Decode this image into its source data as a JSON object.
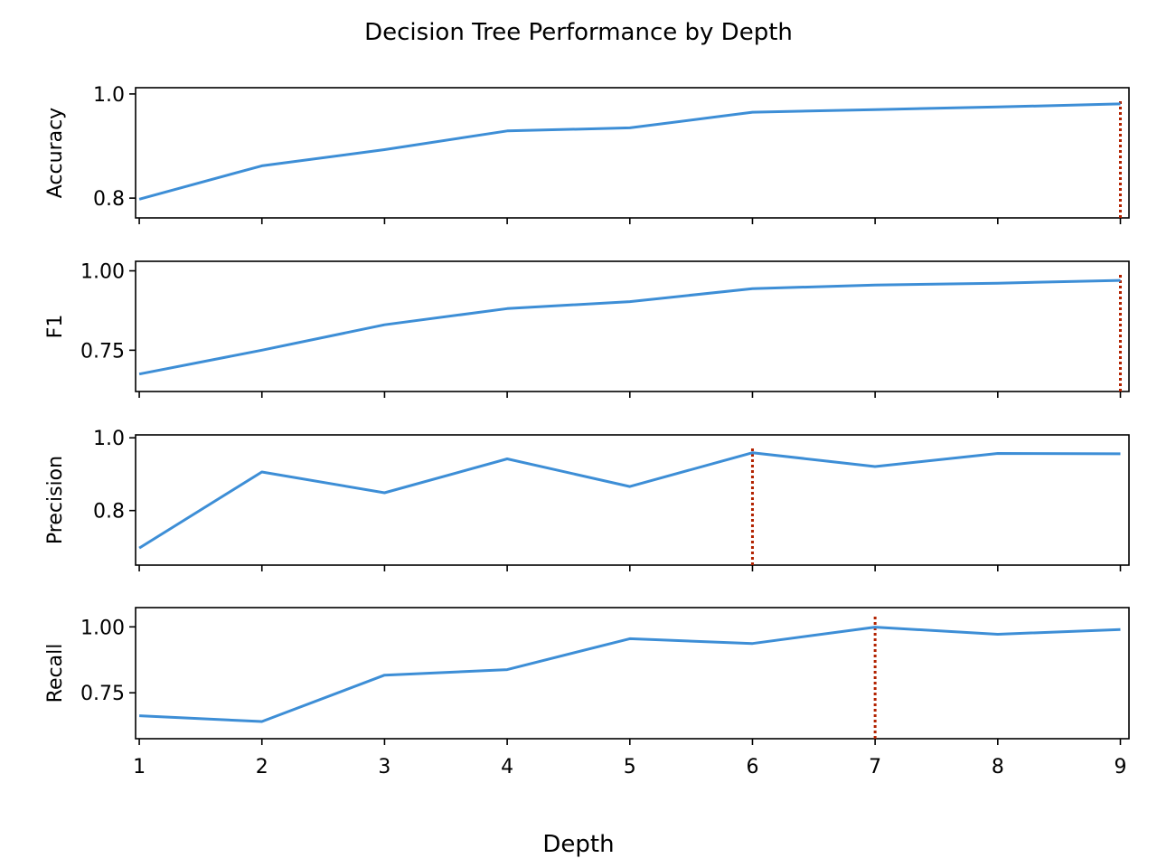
{
  "chart_data": {
    "type": "line",
    "title": "Decision Tree Performance by Depth",
    "xlabel": "Depth",
    "x": [
      1,
      2,
      3,
      4,
      5,
      6,
      7,
      8,
      9
    ],
    "xticks": [
      "1",
      "2",
      "3",
      "4",
      "5",
      "6",
      "7",
      "8",
      "9"
    ],
    "xlim": [
      0.97,
      9.07
    ],
    "line_color": "#3d8ed6",
    "marker_color": "#b22200",
    "grid": false,
    "panels": [
      {
        "ylabel": "Accuracy",
        "ylim": [
          0.762,
          1.012
        ],
        "yticks": [
          0.8,
          1.0
        ],
        "ytick_labels": [
          "0.8",
          "1.0"
        ],
        "values": [
          0.798,
          0.862,
          0.893,
          0.929,
          0.935,
          0.965,
          0.97,
          0.975,
          0.981
        ],
        "best_x": 9
      },
      {
        "ylabel": "F1",
        "ylim": [
          0.62,
          1.03
        ],
        "yticks": [
          0.75,
          1.0
        ],
        "ytick_labels": [
          "0.75",
          "1.00"
        ],
        "values": [
          0.675,
          0.75,
          0.83,
          0.881,
          0.903,
          0.944,
          0.955,
          0.961,
          0.97
        ],
        "best_x": 9
      },
      {
        "ylabel": "Precision",
        "ylim": [
          0.65,
          1.008
        ],
        "yticks": [
          0.8,
          1.0
        ],
        "ytick_labels": [
          "0.8",
          "1.0"
        ],
        "values": [
          0.697,
          0.906,
          0.849,
          0.942,
          0.866,
          0.959,
          0.921,
          0.957,
          0.956
        ],
        "best_x": 6
      },
      {
        "ylabel": "Recall",
        "ylim": [
          0.576,
          1.073
        ],
        "yticks": [
          0.75,
          1.0
        ],
        "ytick_labels": [
          "0.75",
          "1.00"
        ],
        "values": [
          0.663,
          0.641,
          0.817,
          0.838,
          0.955,
          0.937,
          0.999,
          0.972,
          0.99
        ],
        "best_x": 7
      }
    ]
  }
}
